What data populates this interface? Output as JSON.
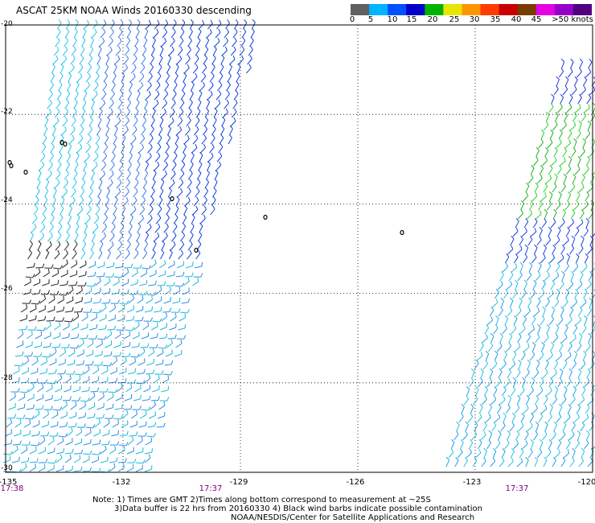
{
  "title": "ASCAT 25KM NOAA Winds 20160330 descending",
  "colorbar": {
    "colors": [
      "#606060",
      "#00b4ff",
      "#0050ff",
      "#0000c8",
      "#00b400",
      "#e6e600",
      "#ff9600",
      "#ff3c00",
      "#c80000",
      "#783c00",
      "#e600e6",
      "#9600c8",
      "#500080"
    ],
    "labels": [
      "0",
      "5",
      "10",
      "15",
      "20",
      "25",
      "30",
      "35",
      "40",
      "45",
      ">50 knots"
    ]
  },
  "axes": {
    "lat_labels": [
      "-20",
      "-22",
      "-24",
      "-26",
      "-28",
      "-30"
    ],
    "lon_labels": [
      "-135",
      "-132",
      "-129",
      "-126",
      "-123",
      "-120"
    ]
  },
  "pass_times": [
    "17:38",
    "17:37",
    "17:37"
  ],
  "notes": {
    "line1": "Note: 1) Times are GMT 2)Times along bottom correspond to measurement at ~25S",
    "line2": "3)Data buffer is 22 hrs from 20160330 4) Black wind barbs indicate possible contamination",
    "line3": "NOAA/NESDIS/Center for Satellite Applications and Research"
  }
}
